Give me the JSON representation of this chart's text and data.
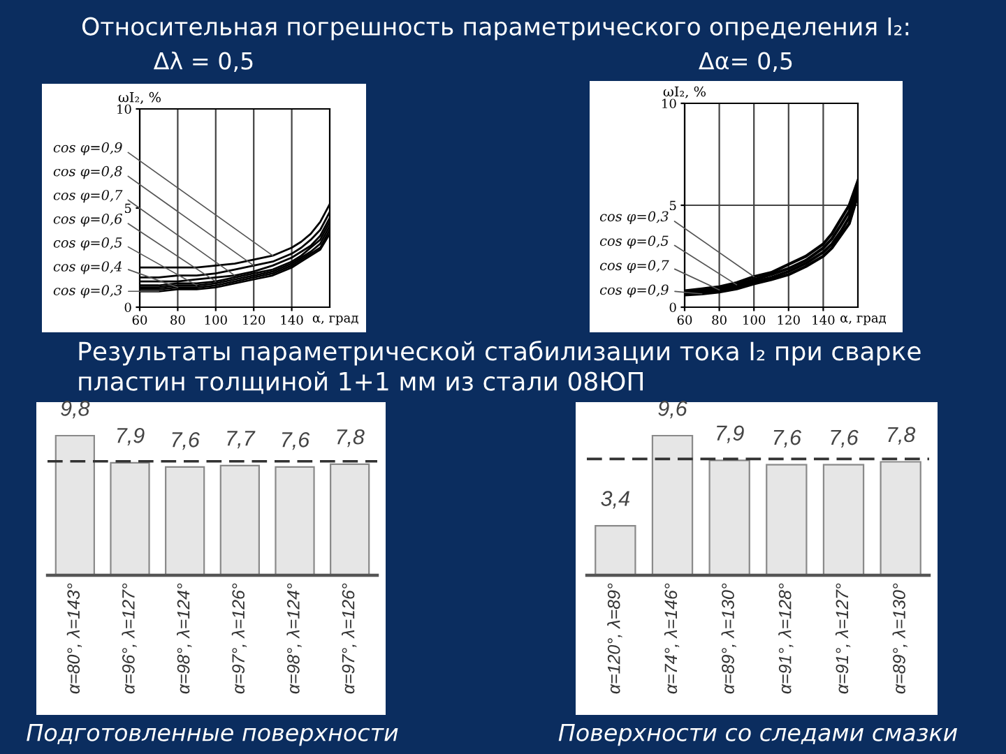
{
  "chart_data": [
    {
      "type": "line",
      "title": "Относительная погрешность параметрического определения I₂:",
      "subtitle": "Δλ = 0,5",
      "xlabel": "α, град",
      "ylabel": "ωI₂, %",
      "x": [
        60,
        70,
        80,
        90,
        100,
        110,
        120,
        130,
        140,
        145,
        150,
        155,
        160
      ],
      "xlim": [
        60,
        160
      ],
      "xticks": [
        60,
        80,
        100,
        120,
        140
      ],
      "ylim": [
        0,
        10
      ],
      "yticks": [
        0,
        5,
        10
      ],
      "grid": "x",
      "series": [
        {
          "name": "cos φ=0,9",
          "color": "#000000",
          "values": [
            2.0,
            2.0,
            2.0,
            2.0,
            2.1,
            2.2,
            2.4,
            2.6,
            3.0,
            3.3,
            3.7,
            4.3,
            5.2
          ]
        },
        {
          "name": "cos φ=0,8",
          "color": "#000000",
          "values": [
            1.5,
            1.5,
            1.6,
            1.6,
            1.7,
            1.9,
            2.1,
            2.3,
            2.7,
            3.0,
            3.4,
            3.9,
            4.8
          ]
        },
        {
          "name": "cos φ=0,7",
          "color": "#000000",
          "values": [
            1.3,
            1.3,
            1.3,
            1.4,
            1.5,
            1.6,
            1.8,
            2.1,
            2.5,
            2.8,
            3.1,
            3.6,
            4.5
          ]
        },
        {
          "name": "cos φ=0,6",
          "color": "#000000",
          "values": [
            1.1,
            1.1,
            1.2,
            1.2,
            1.3,
            1.5,
            1.7,
            1.9,
            2.3,
            2.6,
            3.0,
            3.4,
            4.3
          ]
        },
        {
          "name": "cos φ=0,5",
          "color": "#000000",
          "values": [
            1.0,
            1.0,
            1.1,
            1.1,
            1.2,
            1.4,
            1.6,
            1.8,
            2.2,
            2.5,
            2.8,
            3.2,
            4.1
          ]
        },
        {
          "name": "cos φ=0,4",
          "color": "#000000",
          "values": [
            0.9,
            0.9,
            1.0,
            1.0,
            1.1,
            1.3,
            1.5,
            1.7,
            2.1,
            2.4,
            2.7,
            3.0,
            3.9
          ]
        },
        {
          "name": "cos φ=0,3",
          "color": "#000000",
          "values": [
            0.8,
            0.8,
            0.9,
            0.9,
            1.0,
            1.2,
            1.4,
            1.6,
            2.0,
            2.3,
            2.6,
            2.9,
            3.7
          ]
        }
      ]
    },
    {
      "type": "line",
      "subtitle": "Δα= 0,5",
      "xlabel": "α, град",
      "ylabel": "ωI₂, %",
      "x": [
        60,
        70,
        80,
        90,
        100,
        110,
        120,
        130,
        140,
        145,
        150,
        155,
        160
      ],
      "xlim": [
        60,
        160
      ],
      "xticks": [
        60,
        80,
        100,
        120,
        140
      ],
      "ylim": [
        0,
        10
      ],
      "yticks": [
        0,
        5,
        10
      ],
      "grid": true,
      "series": [
        {
          "name": "cos φ=0,3",
          "color": "#000000",
          "values": [
            0.8,
            0.9,
            1.0,
            1.2,
            1.5,
            1.7,
            2.1,
            2.5,
            3.1,
            3.6,
            4.3,
            5.0,
            6.2
          ]
        },
        {
          "name": "cos φ=0,5",
          "color": "#000000",
          "values": [
            0.7,
            0.8,
            0.9,
            1.1,
            1.35,
            1.6,
            1.9,
            2.3,
            2.9,
            3.35,
            4.0,
            4.7,
            5.9
          ]
        },
        {
          "name": "cos φ=0,7",
          "color": "#000000",
          "values": [
            0.65,
            0.7,
            0.85,
            1.0,
            1.25,
            1.45,
            1.75,
            2.15,
            2.7,
            3.1,
            3.7,
            4.4,
            5.7
          ]
        },
        {
          "name": "cos φ=0,9",
          "color": "#000000",
          "values": [
            0.6,
            0.65,
            0.75,
            0.9,
            1.15,
            1.35,
            1.6,
            2.0,
            2.5,
            2.9,
            3.5,
            4.1,
            5.5
          ]
        }
      ]
    },
    {
      "type": "bar",
      "title": "Результаты параметрической стабилизации тока I₂ при сварке пластин толщиной 1+1 мм из стали 08ЮП",
      "xlabel": "Подготовленные поверхности",
      "categories": [
        "α=80°, λ=143°",
        "α=96°, λ=127°",
        "α=98°, λ=124°",
        "α=97°, λ=126°",
        "α=98°, λ=124°",
        "α=97°, λ=126°"
      ],
      "values": [
        9.8,
        7.9,
        7.6,
        7.7,
        7.6,
        7.8
      ],
      "value_labels": [
        "9,8",
        "7,9",
        "7,6",
        "7,7",
        "7,6",
        "7,8"
      ],
      "color": "#e6e6e6",
      "tick_labels": "x",
      "ref_lines": [
        {
          "axis": "y",
          "value": 8,
          "color": "#333333",
          "line_style": "dashed"
        }
      ]
    },
    {
      "type": "bar",
      "xlabel": "Поверхности со следами смазки",
      "categories": [
        "α=120°, λ=89°",
        "α=74°, λ=146°",
        "α=89°, λ=130°",
        "α=91°, λ=128°",
        "α=91°, λ=127°",
        "α=89°, λ=130°"
      ],
      "values": [
        3.4,
        9.6,
        7.9,
        7.6,
        7.6,
        7.8
      ],
      "value_labels": [
        "3,4",
        "9,6",
        "7,9",
        "7,6",
        "7,6",
        "7,8"
      ],
      "color": "#e6e6e6",
      "tick_labels": "x",
      "ref_lines": [
        {
          "axis": "y",
          "value": 8,
          "color": "#333333",
          "line_style": "dashed"
        }
      ]
    }
  ]
}
